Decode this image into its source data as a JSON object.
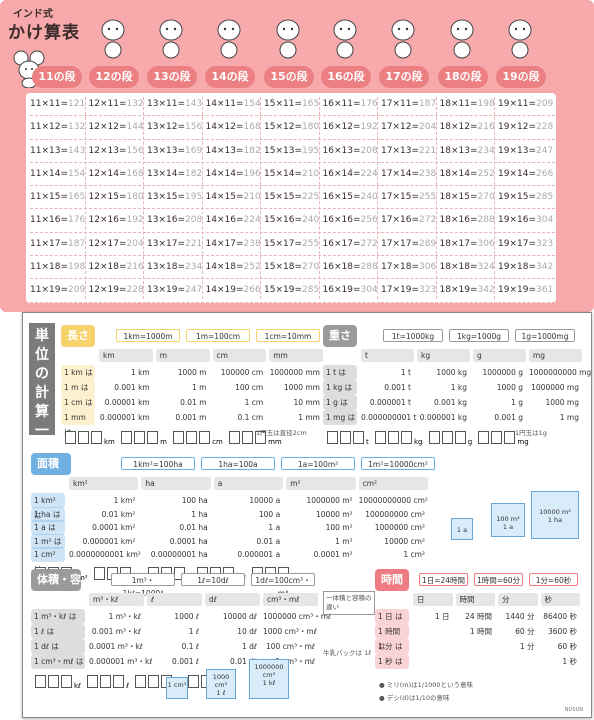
{
  "poster": {
    "tag": "インド式",
    "title": "かけ算表",
    "dan_labels": [
      "11の段",
      "12の段",
      "13の段",
      "14の段",
      "15の段",
      "16の段",
      "17の段",
      "18の段",
      "19の段"
    ],
    "animals": [
      "mouse",
      "dog",
      "bear",
      "rabbit",
      "dragon",
      "snake",
      "horse",
      "sheep",
      "monkey"
    ],
    "columns": [
      {
        "eq": [
          "11×11=",
          "11×12=",
          "11×13=",
          "11×14=",
          "11×15=",
          "11×16=",
          "11×17=",
          "11×18=",
          "11×19="
        ],
        "ans": [
          "121",
          "132",
          "143",
          "154",
          "165",
          "176",
          "187",
          "198",
          "209"
        ]
      },
      {
        "eq": [
          "12×11=",
          "12×12=",
          "12×13=",
          "12×14=",
          "12×15=",
          "12×16=",
          "12×17=",
          "12×18=",
          "12×19="
        ],
        "ans": [
          "132",
          "144",
          "156",
          "168",
          "180",
          "192",
          "204",
          "216",
          "228"
        ]
      },
      {
        "eq": [
          "13×11=",
          "13×12=",
          "13×13=",
          "13×14=",
          "13×15=",
          "13×16=",
          "13×17=",
          "13×18=",
          "13×19="
        ],
        "ans": [
          "143",
          "156",
          "169",
          "182",
          "195",
          "208",
          "221",
          "234",
          "247"
        ]
      },
      {
        "eq": [
          "14×11=",
          "14×12=",
          "14×13=",
          "14×14=",
          "14×15=",
          "14×16=",
          "14×17=",
          "14×18=",
          "14×19="
        ],
        "ans": [
          "154",
          "168",
          "182",
          "196",
          "210",
          "224",
          "238",
          "252",
          "266"
        ]
      },
      {
        "eq": [
          "15×11=",
          "15×12=",
          "15×13=",
          "15×14=",
          "15×15=",
          "15×16=",
          "15×17=",
          "15×18=",
          "15×19="
        ],
        "ans": [
          "165",
          "180",
          "195",
          "210",
          "225",
          "240",
          "255",
          "270",
          "285"
        ]
      },
      {
        "eq": [
          "16×11=",
          "16×12=",
          "16×13=",
          "16×14=",
          "16×15=",
          "16×16=",
          "16×17=",
          "16×18=",
          "16×19="
        ],
        "ans": [
          "176",
          "192",
          "208",
          "224",
          "240",
          "256",
          "272",
          "288",
          "304"
        ]
      },
      {
        "eq": [
          "17×11=",
          "17×12=",
          "17×13=",
          "17×14=",
          "17×15=",
          "17×16=",
          "17×17=",
          "17×18=",
          "17×19="
        ],
        "ans": [
          "187",
          "204",
          "221",
          "238",
          "255",
          "272",
          "289",
          "306",
          "323"
        ]
      },
      {
        "eq": [
          "18×11=",
          "18×12=",
          "18×13=",
          "18×14=",
          "18×15=",
          "18×16=",
          "18×17=",
          "18×18=",
          "18×19="
        ],
        "ans": [
          "198",
          "216",
          "234",
          "252",
          "270",
          "288",
          "306",
          "324",
          "342"
        ]
      },
      {
        "eq": [
          "19×11=",
          "19×12=",
          "19×13=",
          "19×14=",
          "19×15=",
          "19×16=",
          "19×17=",
          "19×18=",
          "19×19="
        ],
        "ans": [
          "209",
          "228",
          "247",
          "266",
          "285",
          "304",
          "323",
          "342",
          "361"
        ]
      }
    ]
  },
  "chart": {
    "title": "単位の計算一覧表",
    "signature": "NOSUN",
    "length": {
      "title": "長さ",
      "color": "#f6d36b",
      "pills": [
        "1km=1000m",
        "1m=100cm",
        "1cm=10mm"
      ],
      "headers": [
        "km",
        "m",
        "cm",
        "mm"
      ],
      "rows": [
        {
          "label": "1 km は",
          "vals": [
            "1 km",
            "1000 m",
            "100000 cm",
            "1000000 mm"
          ]
        },
        {
          "label": "1 m は",
          "vals": [
            "0.001 km",
            "1 m",
            "100 cm",
            "1000 mm"
          ]
        },
        {
          "label": "1 cm は",
          "vals": [
            "0.00001 km",
            "0.01 m",
            "1 cm",
            "10 mm"
          ]
        },
        {
          "label": "1 mm は",
          "vals": [
            "0.000001 km",
            "0.001 m",
            "0.1 cm",
            "1 mm"
          ]
        }
      ],
      "box_units": [
        "km",
        "m",
        "cm",
        "mm"
      ],
      "note": "1円玉は直径2cm"
    },
    "weight": {
      "title": "重さ",
      "color": "#9a9a9a",
      "pills": [
        "1t=1000kg",
        "1kg=1000g",
        "1g=1000mg"
      ],
      "headers": [
        "t",
        "kg",
        "g",
        "mg"
      ],
      "rows": [
        {
          "label": "1 t は",
          "vals": [
            "1 t",
            "1000 kg",
            "1000000 g",
            "1000000000 mg"
          ]
        },
        {
          "label": "1 kg は",
          "vals": [
            "0.001 t",
            "1 kg",
            "1000 g",
            "1000000 mg"
          ]
        },
        {
          "label": "1 g は",
          "vals": [
            "0.000001 t",
            "0.001 kg",
            "1 g",
            "1000 mg"
          ]
        },
        {
          "label": "1 mg は",
          "vals": [
            "0.000000001 t",
            "0.000001 kg",
            "0.001 g",
            "1 mg"
          ]
        }
      ],
      "box_units": [
        "t",
        "kg",
        "g",
        "mg"
      ],
      "note": "1円玉は1g"
    },
    "area": {
      "title": "面積",
      "color": "#6fb0e0",
      "pills": [
        "1km²=100ha",
        "1ha=100a",
        "1a=100m²",
        "1m²=10000cm²"
      ],
      "headers": [
        "km²",
        "ha",
        "a",
        "m²",
        "cm²"
      ],
      "rows": [
        {
          "label": "1 km² は",
          "vals": [
            "1 km²",
            "100 ha",
            "10000 a",
            "1000000 m²",
            "10000000000 cm²"
          ]
        },
        {
          "label": "1 ha は",
          "vals": [
            "0.01 km²",
            "1 ha",
            "100 a",
            "10000 m²",
            "100000000 cm²"
          ]
        },
        {
          "label": "1 a は",
          "vals": [
            "0.0001 km²",
            "0.01 ha",
            "1 a",
            "100 m²",
            "1000000 cm²"
          ]
        },
        {
          "label": "1 m² は",
          "vals": [
            "0.000001 km²",
            "0.0001 ha",
            "0.01 a",
            "1 m²",
            "10000 cm²"
          ]
        },
        {
          "label": "1 cm² は",
          "vals": [
            "0.0000000001 km²",
            "0.00000001 ha",
            "0.000001 a",
            "0.0001 m²",
            "1 cm²"
          ]
        }
      ],
      "box_units": [
        "km²",
        "ha",
        "a",
        "m²",
        "cm²"
      ],
      "cubes": [
        "1 a",
        "100 m²\n1 a",
        "10000 m²\n1 ha"
      ]
    },
    "volume": {
      "title": "体積・容積",
      "color": "#9a9a9a",
      "pills": [
        "1m³・1kℓ=1000ℓ",
        "1ℓ=10dℓ",
        "1dℓ=100cm³・mℓ"
      ],
      "headers": [
        "m³・kℓ",
        "ℓ",
        "dℓ",
        "cm³・mℓ"
      ],
      "rows": [
        {
          "label": "1 m³・kℓ は",
          "vals": [
            "1 m³・kℓ",
            "1000 ℓ",
            "10000 dℓ",
            "1000000 cm³・mℓ"
          ]
        },
        {
          "label": "1 ℓ は",
          "vals": [
            "0.001 m³・kℓ",
            "1 ℓ",
            "10 dℓ",
            "1000 cm³・mℓ"
          ]
        },
        {
          "label": "1 dℓ は",
          "vals": [
            "0.0001 m³・kℓ",
            "0.1 ℓ",
            "1 dℓ",
            "100 cm³・mℓ"
          ]
        },
        {
          "label": "1 cm³・mℓ は",
          "vals": [
            "0.000001 m³・kℓ",
            "0.001 ℓ",
            "0.01 dℓ",
            "1 cm³・mℓ"
          ]
        }
      ],
      "box_units": [
        "kℓ",
        "ℓ",
        "dℓ",
        "mℓ"
      ],
      "cubes": [
        "1 cm³",
        "1000 cm³\n1 ℓ",
        "1000000 cm³\n1 kℓ"
      ],
      "note_title": "一体積と容積の違い",
      "note_extra": "牛乳パックは 1ℓ"
    },
    "time": {
      "title": "時間",
      "color": "#ef7c82",
      "pills": [
        "1日=24時間",
        "1時間=60分",
        "1分=60秒"
      ],
      "headers": [
        "日",
        "時間",
        "分",
        "秒"
      ],
      "rows": [
        {
          "label": "1 日 は",
          "vals": [
            "1 日",
            "24 時間",
            "1440 分",
            "86400 秒"
          ]
        },
        {
          "label": "1 時間 は",
          "vals": [
            "",
            "1 時間",
            "60 分",
            "3600 秒"
          ]
        },
        {
          "label": "1 分 は",
          "vals": [
            "",
            "",
            "1 分",
            "60 秒"
          ]
        },
        {
          "label": "1 秒 は",
          "vals": [
            "",
            "",
            "",
            "1 秒"
          ]
        }
      ],
      "notes": [
        "ミリ(m)は1/1000という意味",
        "デシ(d)は1/10の意味"
      ]
    }
  }
}
